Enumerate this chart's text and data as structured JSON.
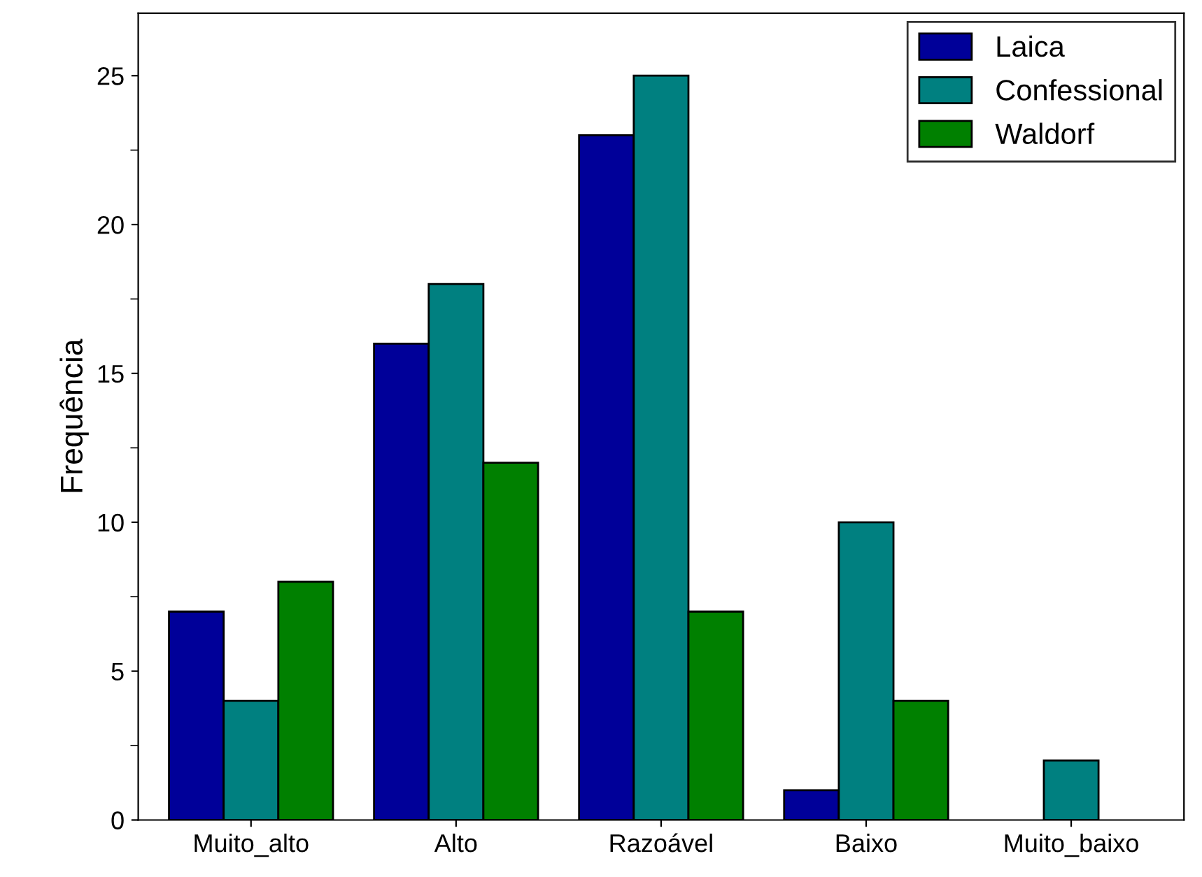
{
  "chart_data": {
    "type": "bar",
    "ylabel": "Frequência",
    "categories": [
      "Muito_alto",
      "Alto",
      "Razoável",
      "Baixo",
      "Muito_baixo"
    ],
    "series": [
      {
        "name": "Laica",
        "color": "#000099",
        "values": [
          7,
          16,
          23,
          1,
          0
        ]
      },
      {
        "name": "Confessional",
        "color": "#008080",
        "values": [
          4,
          18,
          25,
          10,
          2
        ]
      },
      {
        "name": "Waldorf",
        "color": "#008000",
        "values": [
          8,
          12,
          7,
          4,
          0
        ]
      }
    ],
    "ylim": [
      0,
      27.1
    ],
    "yticks": [
      0,
      5,
      10,
      15,
      20,
      25
    ],
    "grid": false,
    "legend": "top right"
  }
}
